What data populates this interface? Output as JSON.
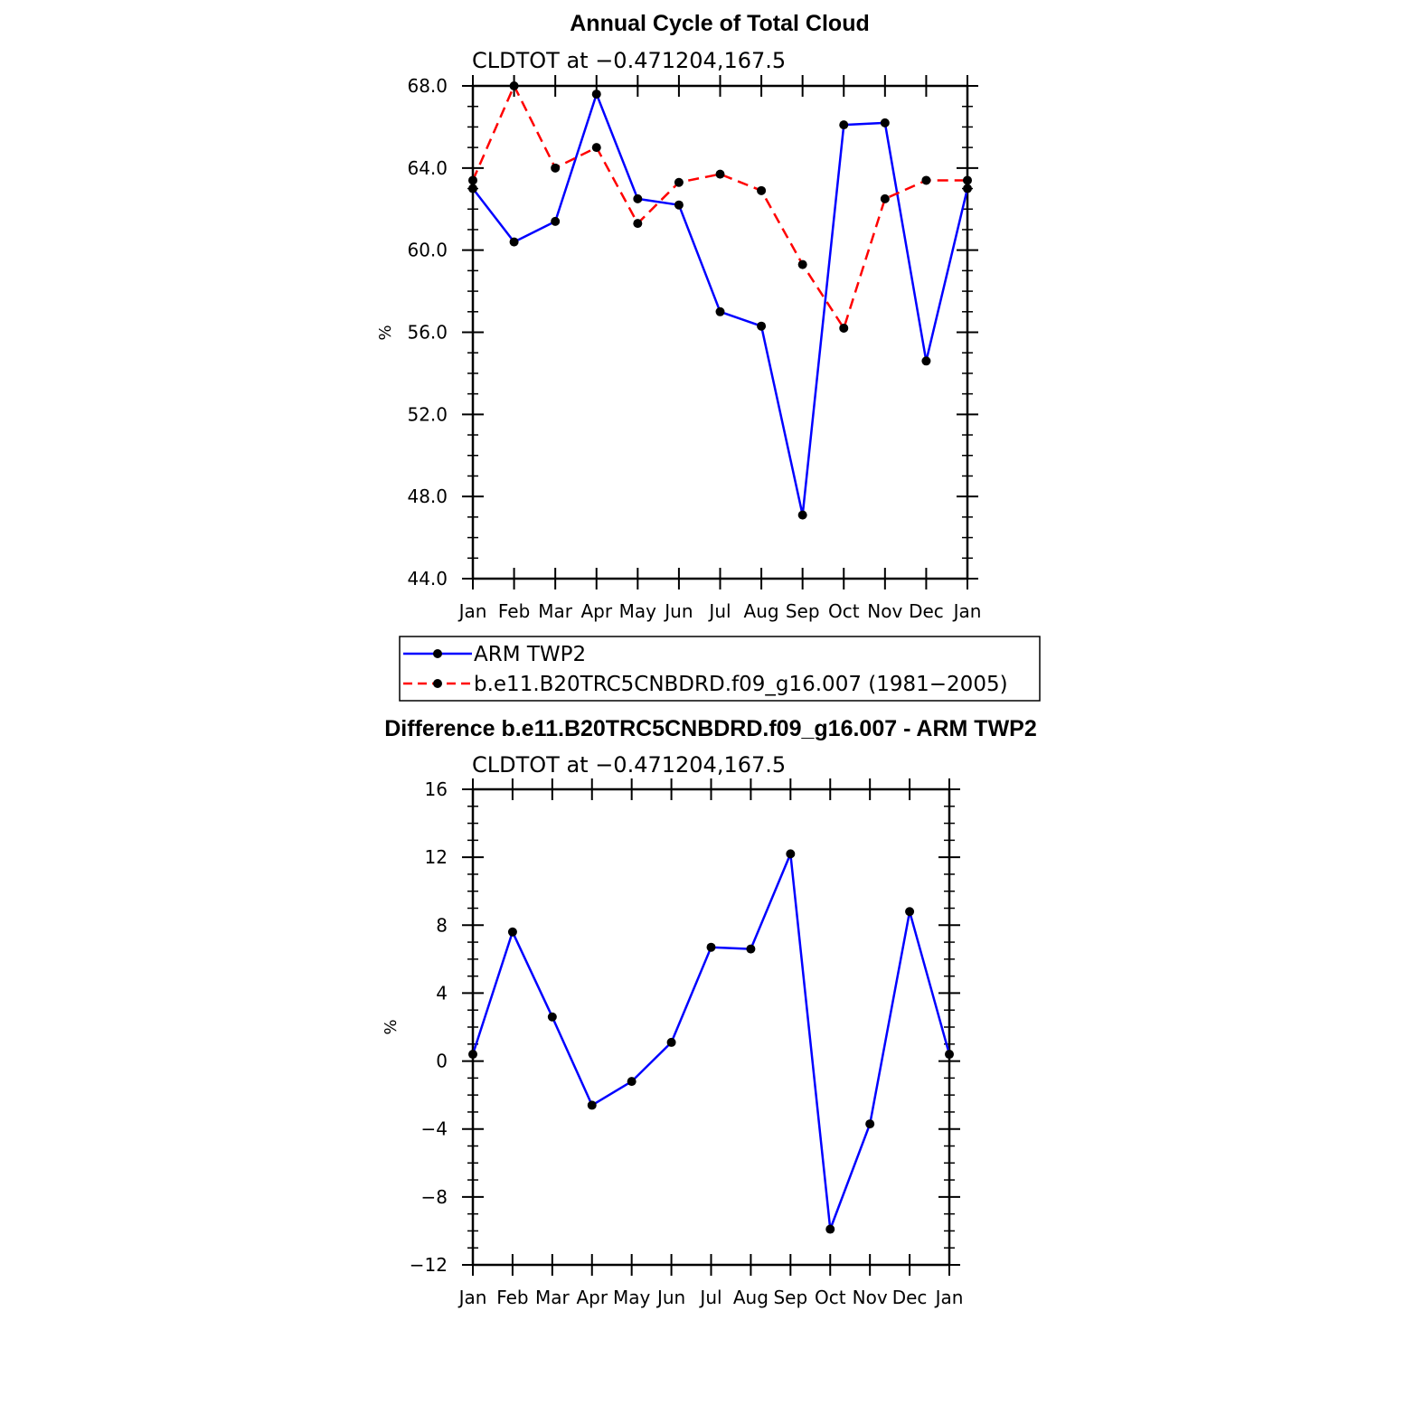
{
  "chart_data": [
    {
      "type": "line",
      "title": "Annual Cycle of Total Cloud",
      "subtitle": "CLDTOT at −0.471204,167.5",
      "xlabel": "",
      "ylabel": "%",
      "categories": [
        "Jan",
        "Feb",
        "Mar",
        "Apr",
        "May",
        "Jun",
        "Jul",
        "Aug",
        "Sep",
        "Oct",
        "Nov",
        "Dec",
        "Jan"
      ],
      "ylim": [
        44,
        68
      ],
      "yticks": [
        "44.0",
        "48.0",
        "52.0",
        "56.0",
        "60.0",
        "64.0",
        "68.0"
      ],
      "ytick_values": [
        44,
        48,
        52,
        56,
        60,
        64,
        68
      ],
      "grid": false,
      "legend": "below",
      "series": [
        {
          "name": "ARM TWP2",
          "color": "#0000ff",
          "style": "solid",
          "values": [
            63.0,
            60.4,
            61.4,
            67.6,
            62.5,
            62.2,
            57.0,
            56.3,
            47.1,
            66.1,
            66.2,
            54.6,
            63.0
          ]
        },
        {
          "name": "b.e11.B20TRC5CNBDRD.f09_g16.007 (1981−2005)",
          "color": "#ff0000",
          "style": "dashed",
          "values": [
            63.4,
            68.0,
            64.0,
            65.0,
            61.3,
            63.3,
            63.7,
            62.9,
            59.3,
            56.2,
            62.5,
            63.4,
            63.4
          ]
        }
      ]
    },
    {
      "type": "line",
      "title": "Difference b.e11.B20TRC5CNBDRD.f09_g16.007 - ARM TWP2",
      "subtitle": "CLDTOT at −0.471204,167.5",
      "xlabel": "",
      "ylabel": "%",
      "categories": [
        "Jan",
        "Feb",
        "Mar",
        "Apr",
        "May",
        "Jun",
        "Jul",
        "Aug",
        "Sep",
        "Oct",
        "Nov",
        "Dec",
        "Jan"
      ],
      "ylim": [
        -12,
        16
      ],
      "yticks": [
        "−12",
        "−8",
        "−4",
        "0",
        "4",
        "8",
        "12",
        "16"
      ],
      "ytick_values": [
        -12,
        -8,
        -4,
        0,
        4,
        8,
        12,
        16
      ],
      "grid": false,
      "series": [
        {
          "color": "#0000ff",
          "style": "solid",
          "values": [
            0.4,
            7.6,
            2.6,
            -2.6,
            -1.2,
            1.1,
            6.7,
            6.6,
            12.2,
            -9.9,
            -3.7,
            8.8,
            0.4
          ]
        }
      ]
    }
  ]
}
